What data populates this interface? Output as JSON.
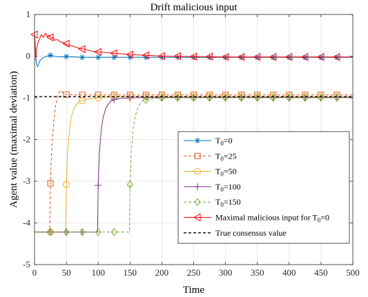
{
  "chart_data": {
    "type": "line",
    "title": "Drift malicious input",
    "xlabel": "Time",
    "ylabel": "Agent value (maximal deviation)",
    "xlim": [
      0,
      500
    ],
    "ylim": [
      -5,
      1
    ],
    "x_ticks": [
      0,
      50,
      100,
      150,
      200,
      250,
      300,
      350,
      400,
      450,
      500
    ],
    "y_ticks": [
      1,
      0,
      -1,
      -2,
      -3,
      -4,
      -5
    ],
    "x_tick_labels": [
      "0",
      "50",
      "100",
      "150",
      "200",
      "250",
      "300",
      "350",
      "400",
      "450",
      "500"
    ],
    "y_tick_labels": [
      "1",
      "0",
      "-1",
      "-2",
      "-3",
      "-4",
      "-5"
    ],
    "grid": true,
    "legend_position": "bottom-right",
    "series": [
      {
        "name": "T0=0",
        "label_base": "T",
        "label_sub": "0",
        "label_rest": "=0",
        "color": "#0072BD",
        "dash": "solid",
        "marker": "asterisk",
        "x": [
          0,
          1,
          2,
          3,
          5,
          8,
          12,
          16,
          20,
          25,
          30,
          40,
          50,
          75,
          100,
          150,
          200,
          300,
          400,
          500
        ],
        "y": [
          0.5,
          0.3,
          0.0,
          -0.2,
          -0.25,
          -0.12,
          -0.05,
          -0.02,
          0.0,
          0.02,
          0.0,
          -0.02,
          -0.01,
          -0.03,
          -0.03,
          -0.03,
          -0.03,
          -0.03,
          -0.03,
          -0.03
        ],
        "marker_x": [
          25,
          50,
          75,
          100,
          125,
          150,
          175,
          200,
          225,
          250,
          275,
          300,
          325,
          350,
          375,
          400,
          425,
          450,
          475
        ],
        "marker_y": [
          0.02,
          -0.01,
          -0.03,
          -0.03,
          -0.03,
          -0.03,
          -0.03,
          -0.03,
          -0.03,
          -0.03,
          -0.03,
          -0.03,
          -0.03,
          -0.03,
          -0.03,
          -0.03,
          -0.03,
          -0.03,
          -0.03
        ]
      },
      {
        "name": "T0=25",
        "label_base": "T",
        "label_sub": "0",
        "label_rest": "=25",
        "color": "#D95319",
        "dash": "dashed",
        "marker": "square",
        "x": [
          0,
          24,
          25,
          27,
          30,
          33,
          36,
          40,
          45,
          50,
          75,
          100,
          200,
          300,
          400,
          500
        ],
        "y": [
          -4.22,
          -4.22,
          -3.05,
          -2.2,
          -1.6,
          -1.2,
          -0.95,
          -0.82,
          -0.88,
          -0.92,
          -0.93,
          -0.93,
          -0.93,
          -0.93,
          -0.93,
          -0.93
        ],
        "marker_x": [
          25,
          50,
          75,
          100,
          125,
          150,
          175,
          200,
          225,
          250,
          275,
          300,
          325,
          350,
          375,
          400,
          425,
          450,
          475
        ],
        "marker_y": [
          -3.05,
          -0.92,
          -0.93,
          -0.93,
          -0.93,
          -0.93,
          -0.93,
          -0.93,
          -0.93,
          -0.93,
          -0.93,
          -0.93,
          -0.93,
          -0.93,
          -0.93,
          -0.93,
          -0.93,
          -0.93,
          -0.93
        ]
      },
      {
        "name": "T0=50",
        "label_base": "T",
        "label_sub": "0",
        "label_rest": "=50",
        "color": "#EDB120",
        "dash": "solid",
        "marker": "circle",
        "x": [
          0,
          49,
          50,
          52,
          55,
          58,
          62,
          66,
          70,
          75,
          85,
          100,
          125,
          150,
          200,
          300,
          400,
          500
        ],
        "y": [
          -4.22,
          -4.22,
          -3.08,
          -2.3,
          -1.75,
          -1.45,
          -1.25,
          -1.15,
          -1.1,
          -1.07,
          -1.03,
          -1.0,
          -0.97,
          -0.97,
          -0.97,
          -0.97,
          -0.97,
          -0.97
        ],
        "marker_x": [
          25,
          50,
          75,
          100,
          125,
          150,
          175,
          200,
          225,
          250,
          275,
          300,
          325,
          350,
          375,
          400,
          425,
          450,
          475
        ],
        "marker_y": [
          -4.22,
          -3.08,
          -1.07,
          -1.0,
          -0.97,
          -0.97,
          -0.97,
          -0.97,
          -0.97,
          -0.97,
          -0.97,
          -0.97,
          -0.97,
          -0.97,
          -0.97,
          -0.97,
          -0.97,
          -0.97,
          -0.97
        ]
      },
      {
        "name": "T0=100",
        "label_base": "T",
        "label_sub": "0",
        "label_rest": "=100",
        "color": "#7E2F8E",
        "dash": "solid",
        "marker": "plus",
        "x": [
          0,
          99,
          100,
          102,
          105,
          108,
          112,
          116,
          120,
          125,
          135,
          150,
          200,
          300,
          400,
          500
        ],
        "y": [
          -4.22,
          -4.22,
          -3.1,
          -2.3,
          -1.75,
          -1.45,
          -1.25,
          -1.15,
          -1.08,
          -1.04,
          -1.01,
          -1.0,
          -0.99,
          -0.99,
          -0.99,
          -0.99
        ],
        "marker_x": [
          25,
          50,
          75,
          100,
          125,
          150,
          175,
          200,
          225,
          250,
          275,
          300,
          325,
          350,
          375,
          400,
          425,
          450,
          475
        ],
        "marker_y": [
          -4.22,
          -4.22,
          -4.22,
          -3.1,
          -1.04,
          -1.0,
          -0.99,
          -0.99,
          -0.99,
          -0.99,
          -0.99,
          -0.99,
          -0.99,
          -0.99,
          -0.99,
          -0.99,
          -0.99,
          -0.99,
          -0.99
        ]
      },
      {
        "name": "T0=150",
        "label_base": "T",
        "label_sub": "0",
        "label_rest": "=150",
        "color": "#77AC30",
        "dash": "dashed",
        "marker": "diamond",
        "x": [
          0,
          149,
          150,
          152,
          155,
          158,
          162,
          166,
          170,
          175,
          185,
          200,
          250,
          300,
          400,
          500
        ],
        "y": [
          -4.22,
          -4.22,
          -3.08,
          -2.3,
          -1.75,
          -1.45,
          -1.25,
          -1.13,
          -1.08,
          -1.05,
          -1.02,
          -1.0,
          -1.0,
          -1.0,
          -1.0,
          -1.0
        ],
        "marker_x": [
          25,
          50,
          75,
          100,
          125,
          150,
          175,
          200,
          225,
          250,
          275,
          300,
          325,
          350,
          375,
          400,
          425,
          450,
          475
        ],
        "marker_y": [
          -4.22,
          -4.22,
          -4.22,
          -4.22,
          -4.22,
          -3.08,
          -1.05,
          -1.0,
          -1.0,
          -1.0,
          -1.0,
          -1.0,
          -1.0,
          -1.0,
          -1.0,
          -1.0,
          -1.0,
          -1.0,
          -1.0
        ]
      },
      {
        "name": "Maximal malicious input for T0=0",
        "label_base": "Maximal malicious input for T",
        "label_sub": "0",
        "label_rest": "=0",
        "color": "#FF0000",
        "dash": "solid",
        "marker": "triangle-left",
        "x": [
          0,
          1,
          2,
          3,
          5,
          8,
          11,
          14,
          17,
          20,
          23,
          26,
          29,
          32,
          36,
          40,
          45,
          50,
          60,
          70,
          80,
          90,
          100,
          125,
          150,
          175,
          200,
          250,
          300,
          350,
          400,
          450,
          500
        ],
        "y": [
          0.55,
          0.3,
          -0.1,
          0.15,
          0.3,
          0.42,
          0.52,
          0.45,
          0.55,
          0.48,
          0.5,
          0.42,
          0.45,
          0.38,
          0.4,
          0.34,
          0.33,
          0.28,
          0.24,
          0.19,
          0.16,
          0.12,
          0.1,
          0.07,
          0.04,
          0.02,
          0.0,
          -0.01,
          -0.02,
          -0.02,
          -0.02,
          -0.02,
          -0.02
        ],
        "marker_x": [
          0,
          25,
          50,
          75,
          100,
          125,
          150,
          175,
          200,
          225,
          250,
          275,
          300,
          325,
          350,
          375,
          400,
          425,
          450,
          475
        ],
        "marker_y": [
          0.52,
          0.45,
          0.3,
          0.17,
          0.1,
          0.07,
          0.04,
          0.02,
          0.0,
          0.0,
          -0.01,
          -0.01,
          -0.02,
          -0.02,
          -0.02,
          -0.02,
          -0.02,
          -0.02,
          -0.02,
          -0.02
        ]
      },
      {
        "name": "True consensus value",
        "label_base": "True consensus value",
        "label_sub": "",
        "label_rest": "",
        "color": "#000000",
        "dash": "dashed",
        "marker": "none",
        "x": [
          0,
          500
        ],
        "y": [
          -0.97,
          -0.97
        ],
        "marker_x": [],
        "marker_y": []
      }
    ]
  }
}
